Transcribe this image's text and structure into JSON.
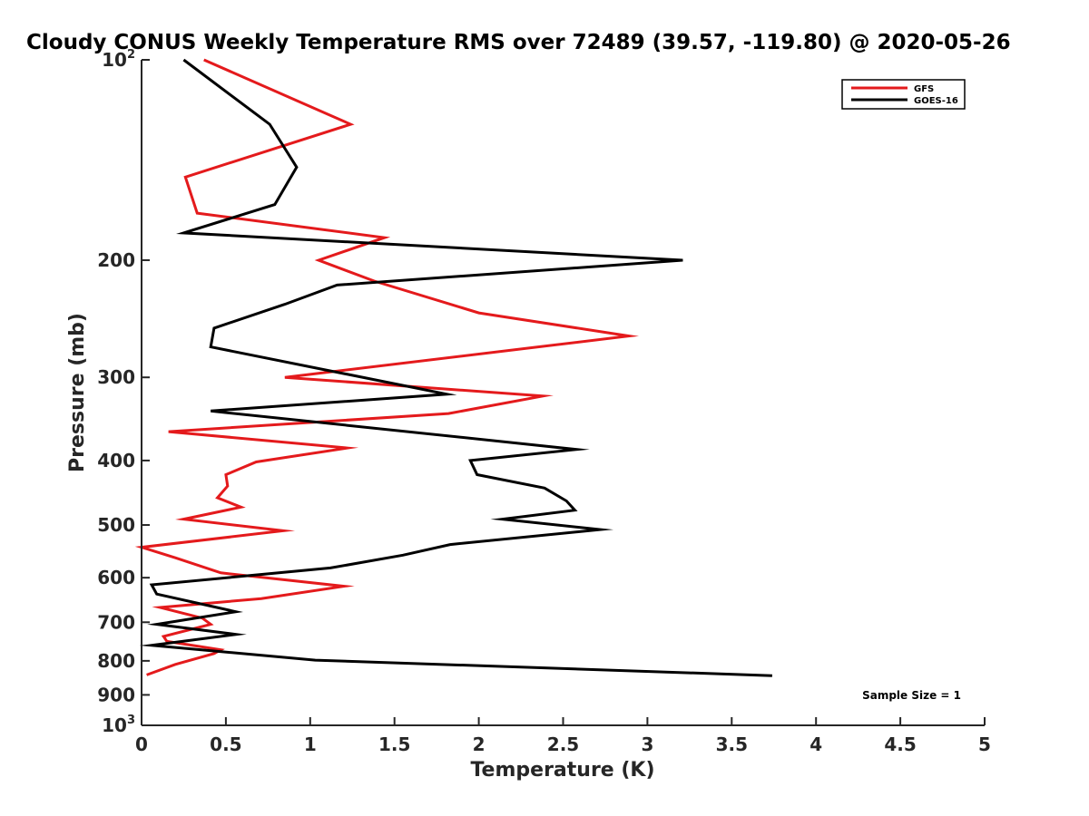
{
  "chart_data": {
    "type": "line",
    "title": "Cloudy CONUS Weekly Temperature RMS over 72489 (39.57, -119.80) @ 2020-05-26",
    "xlabel": "Temperature (K)",
    "ylabel": "Pressure (mb)",
    "xlim": [
      0,
      5
    ],
    "ylim": [
      1000,
      100
    ],
    "yscale": "log",
    "x_ticks": [
      "0",
      "0.5",
      "1",
      "1.5",
      "2",
      "2.5",
      "3",
      "3.5",
      "4",
      "4.5",
      "5"
    ],
    "x_tick_values": [
      0,
      0.5,
      1,
      1.5,
      2,
      2.5,
      3,
      3.5,
      4,
      4.5,
      5
    ],
    "y_ticks": [
      {
        "value": 100,
        "base": "10",
        "exp": "2"
      },
      {
        "value": 200,
        "label": "200"
      },
      {
        "value": 300,
        "label": "300"
      },
      {
        "value": 400,
        "label": "400"
      },
      {
        "value": 500,
        "label": "500"
      },
      {
        "value": 600,
        "label": "600"
      },
      {
        "value": 700,
        "label": "700"
      },
      {
        "value": 800,
        "label": "800"
      },
      {
        "value": 900,
        "label": "900"
      },
      {
        "value": 1000,
        "base": "10",
        "exp": "3"
      }
    ],
    "grid": false,
    "legend_position": "top-right",
    "annotation": "Sample Size = 1",
    "series": [
      {
        "name": "GFS",
        "color": "#e41a1c",
        "points": [
          [
            0.37,
            100
          ],
          [
            1.24,
            125
          ],
          [
            0.26,
            150
          ],
          [
            0.33,
            170
          ],
          [
            1.44,
            185
          ],
          [
            1.05,
            200
          ],
          [
            1.38,
            215
          ],
          [
            2.0,
            240
          ],
          [
            2.89,
            260
          ],
          [
            0.85,
            300
          ],
          [
            2.38,
            320
          ],
          [
            1.82,
            340
          ],
          [
            0.16,
            362
          ],
          [
            1.22,
            383
          ],
          [
            0.68,
            402
          ],
          [
            0.5,
            420
          ],
          [
            0.51,
            437
          ],
          [
            0.45,
            455
          ],
          [
            0.59,
            470
          ],
          [
            0.25,
            490
          ],
          [
            0.84,
            510
          ],
          [
            0.0,
            540
          ],
          [
            0.2,
            560
          ],
          [
            0.47,
            590
          ],
          [
            1.2,
            618
          ],
          [
            0.71,
            645
          ],
          [
            0.11,
            665
          ],
          [
            0.36,
            690
          ],
          [
            0.41,
            705
          ],
          [
            0.13,
            735
          ],
          [
            0.15,
            748
          ],
          [
            0.47,
            770
          ],
          [
            0.43,
            780
          ],
          [
            0.2,
            810
          ],
          [
            0.03,
            840
          ]
        ]
      },
      {
        "name": "GOES-16",
        "color": "#000000",
        "points": [
          [
            0.25,
            100
          ],
          [
            0.76,
            125
          ],
          [
            0.92,
            145
          ],
          [
            0.79,
            165
          ],
          [
            0.25,
            182
          ],
          [
            3.21,
            200
          ],
          [
            1.16,
            218
          ],
          [
            0.85,
            233
          ],
          [
            0.43,
            253
          ],
          [
            0.41,
            270
          ],
          [
            1.81,
            318
          ],
          [
            0.41,
            337
          ],
          [
            2.58,
            385
          ],
          [
            1.95,
            400
          ],
          [
            1.99,
            420
          ],
          [
            2.39,
            440
          ],
          [
            2.52,
            460
          ],
          [
            2.57,
            475
          ],
          [
            2.14,
            490
          ],
          [
            2.72,
            508
          ],
          [
            1.83,
            535
          ],
          [
            1.55,
            555
          ],
          [
            1.12,
            580
          ],
          [
            0.06,
            615
          ],
          [
            0.09,
            635
          ],
          [
            0.56,
            675
          ],
          [
            0.09,
            705
          ],
          [
            0.56,
            730
          ],
          [
            0.06,
            758
          ],
          [
            1.03,
            798
          ],
          [
            3.74,
            842
          ]
        ]
      }
    ]
  }
}
